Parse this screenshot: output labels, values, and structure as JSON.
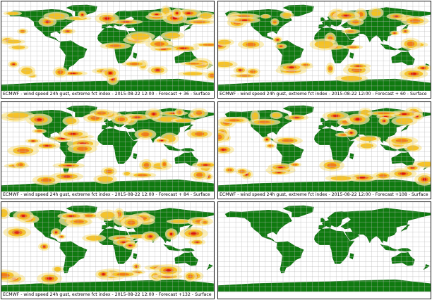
{
  "panels": [
    {
      "caption": "ECMWF - wind speed 24h gust, extreme fct index - 2015-08-22 12:00 - Forecast + 36 - Surface",
      "has_data": true,
      "seed": 3
    },
    {
      "caption": "ECMWF - wind speed 24h gust, extreme fct index - 2015-08-22 12:00 - Forecast + 60 - Surface",
      "has_data": true,
      "seed": 7
    },
    {
      "caption": "ECMWF - wind speed 24h gust, extreme fct index - 2015-08-22 12:00 - Forecast + 84 - Surface",
      "has_data": true,
      "seed": 11
    },
    {
      "caption": "ECMWF - wind speed 24h gust, extreme fct index - 2015-08-22 12:00 - Forecast +108 - Surface",
      "has_data": true,
      "seed": 17
    },
    {
      "caption": "ECMWF - wind speed 24h gust, extreme fct index - 2015-08-22 12:00 - Forecast +132 - Surface",
      "has_data": true,
      "seed": 23
    },
    {
      "caption": "",
      "has_data": false,
      "seed": 0
    }
  ],
  "colors": {
    "land": "#0f7a0f",
    "grid": "#b8b8b8",
    "ocean": "#ffffff",
    "efi_low": "#fbe9a0",
    "efi_mid": "#f5c020",
    "efi_high": "#f07818",
    "efi_max": "#d81010"
  }
}
